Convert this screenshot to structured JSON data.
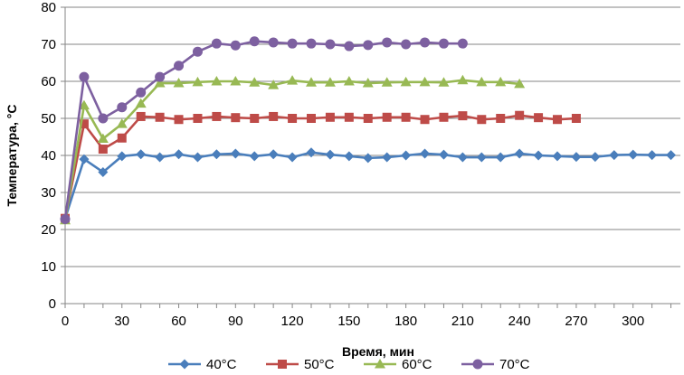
{
  "chart_data": {
    "type": "line",
    "xlabel": "Время, мин",
    "ylabel": "Температура, °С",
    "xlim": [
      0,
      325
    ],
    "ylim": [
      0,
      80
    ],
    "x_ticks": [
      0,
      30,
      60,
      90,
      120,
      150,
      180,
      210,
      240,
      270,
      300
    ],
    "y_ticks": [
      0,
      10,
      20,
      30,
      40,
      50,
      60,
      70,
      80
    ],
    "grid": "horizontal",
    "legend_position": "bottom",
    "series": [
      {
        "name": "40°C",
        "color": "#4a7ebb",
        "marker": "diamond",
        "x": [
          0,
          10,
          20,
          30,
          40,
          50,
          60,
          70,
          80,
          90,
          100,
          110,
          120,
          130,
          140,
          150,
          160,
          170,
          180,
          190,
          200,
          210,
          220,
          230,
          240,
          250,
          260,
          270,
          280,
          290,
          300,
          310,
          320
        ],
        "y": [
          23,
          39,
          35.5,
          39.8,
          40.3,
          39.5,
          40.3,
          39.5,
          40.3,
          40.5,
          39.8,
          40.3,
          39.5,
          40.8,
          40.2,
          39.8,
          39.3,
          39.5,
          40,
          40.5,
          40.2,
          39.5,
          39.5,
          39.5,
          40.5,
          40,
          39.8,
          39.6,
          39.6,
          40.1,
          40.2,
          40.1,
          40.1
        ]
      },
      {
        "name": "50°C",
        "color": "#be4b48",
        "marker": "square",
        "x": [
          0,
          10,
          20,
          30,
          40,
          50,
          60,
          70,
          80,
          90,
          100,
          110,
          120,
          130,
          140,
          150,
          160,
          170,
          180,
          190,
          200,
          210,
          220,
          230,
          240,
          250,
          260,
          270
        ],
        "y": [
          23,
          48.5,
          41.7,
          44.7,
          50.5,
          50.3,
          49.7,
          50,
          50.5,
          50.2,
          50,
          50.5,
          50,
          50,
          50.3,
          50.3,
          50,
          50.3,
          50.3,
          49.7,
          50.3,
          50.7,
          49.7,
          50,
          50.8,
          50.2,
          49.7,
          50
        ]
      },
      {
        "name": "60°C",
        "color": "#98b954",
        "marker": "triangle",
        "x": [
          0,
          10,
          20,
          30,
          40,
          50,
          60,
          70,
          80,
          90,
          100,
          110,
          120,
          130,
          140,
          150,
          160,
          170,
          180,
          190,
          200,
          210,
          220,
          230,
          240
        ],
        "y": [
          22.5,
          53.5,
          44.5,
          48.5,
          54,
          59.5,
          59.5,
          59.8,
          60,
          60,
          59.7,
          59,
          60.2,
          59.7,
          59.7,
          60,
          59.5,
          59.7,
          59.8,
          59.8,
          59.7,
          60.3,
          59.8,
          59.8,
          59.3
        ]
      },
      {
        "name": "70°C",
        "color": "#7d60a0",
        "marker": "circle",
        "x": [
          0,
          10,
          20,
          30,
          40,
          50,
          60,
          70,
          80,
          90,
          100,
          110,
          120,
          130,
          140,
          150,
          160,
          170,
          180,
          190,
          200,
          210
        ],
        "y": [
          22.8,
          61.2,
          50,
          53,
          57,
          61.2,
          64.2,
          68,
          70.2,
          69.7,
          70.8,
          70.5,
          70.2,
          70.2,
          70,
          69.5,
          69.8,
          70.5,
          70,
          70.5,
          70.2,
          70.2
        ]
      }
    ]
  }
}
